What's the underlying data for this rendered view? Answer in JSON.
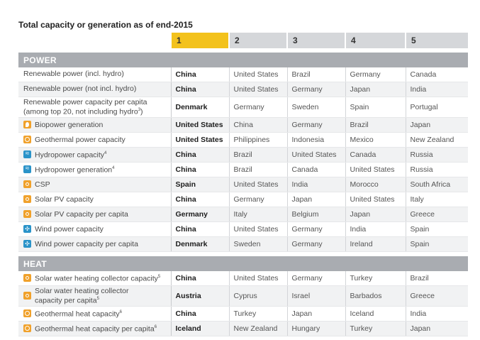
{
  "title": "Total capacity or generation as of end-2015",
  "ranks": [
    "1",
    "2",
    "3",
    "4",
    "5"
  ],
  "sections": [
    {
      "name": "POWER",
      "rows": [
        {
          "label": "Renewable power (incl. hydro)",
          "sup": "",
          "icon": "",
          "c": [
            "China",
            "United States",
            "Brazil",
            "Germany",
            "Canada"
          ]
        },
        {
          "label": "Renewable power (not incl. hydro)",
          "sup": "",
          "icon": "",
          "c": [
            "China",
            "United States",
            "Germany",
            "Japan",
            "India"
          ]
        },
        {
          "label": "Renewable power capacity per capita",
          "label2": "(among top 20, not including hydro",
          "sup": "3",
          "tail": ")",
          "icon": "",
          "tall": true,
          "c": [
            "Denmark",
            "Germany",
            "Sweden",
            "Spain",
            "Portugal"
          ]
        },
        {
          "label": "Biopower generation",
          "sup": "",
          "icon": "leaf-icon",
          "c": [
            "United States",
            "China",
            "Germany",
            "Brazil",
            "Japan"
          ]
        },
        {
          "label": "Geothermal power capacity",
          "sup": "",
          "icon": "geothermal-icon",
          "c": [
            "United States",
            "Philippines",
            "Indonesia",
            "Mexico",
            "New Zealand"
          ]
        },
        {
          "label": "Hydropower capacity",
          "sup": "4",
          "icon": "hydro-icon",
          "c": [
            "China",
            "Brazil",
            "United States",
            "Canada",
            "Russia"
          ]
        },
        {
          "label": "Hydropower generation",
          "sup": "4",
          "icon": "hydro-icon",
          "c": [
            "China",
            "Brazil",
            "Canada",
            "United States",
            "Russia"
          ]
        },
        {
          "label": "CSP",
          "sup": "",
          "icon": "sun-icon",
          "c": [
            "Spain",
            "United States",
            "India",
            "Morocco",
            "South Africa"
          ]
        },
        {
          "label": "Solar PV capacity",
          "sup": "",
          "icon": "sun-icon",
          "c": [
            "China",
            "Germany",
            "Japan",
            "United States",
            "Italy"
          ]
        },
        {
          "label": "Solar PV capacity per capita",
          "sup": "",
          "icon": "sun-icon",
          "c": [
            "Germany",
            "Italy",
            "Belgium",
            "Japan",
            "Greece"
          ]
        },
        {
          "label": "Wind power capacity",
          "sup": "",
          "icon": "wind-icon",
          "c": [
            "China",
            "United States",
            "Germany",
            "India",
            "Spain"
          ]
        },
        {
          "label": "Wind power capacity per capita",
          "sup": "",
          "icon": "wind-icon",
          "c": [
            "Denmark",
            "Sweden",
            "Germany",
            "Ireland",
            "Spain"
          ]
        }
      ]
    },
    {
      "name": "HEAT",
      "rows": [
        {
          "label": "Solar water heating collector capacity",
          "sup": "5",
          "icon": "sun-icon",
          "c": [
            "China",
            "United States",
            "Germany",
            "Turkey",
            "Brazil"
          ]
        },
        {
          "label": "Solar water heating collector",
          "label2": "capacity per capita",
          "sup": "5",
          "tail": "",
          "icon": "sun-icon",
          "tall": true,
          "c": [
            "Austria",
            "Cyprus",
            "Israel",
            "Barbados",
            "Greece"
          ]
        },
        {
          "label": "Geothermal heat capacity",
          "sup": "6",
          "icon": "geothermal-icon",
          "c": [
            "China",
            "Turkey",
            "Japan",
            "Iceland",
            "India"
          ]
        },
        {
          "label": "Geothermal heat capacity per capita",
          "sup": "6",
          "icon": "geothermal-icon",
          "c": [
            "Iceland",
            "New Zealand",
            "Hungary",
            "Turkey",
            "Japan"
          ]
        }
      ]
    }
  ]
}
